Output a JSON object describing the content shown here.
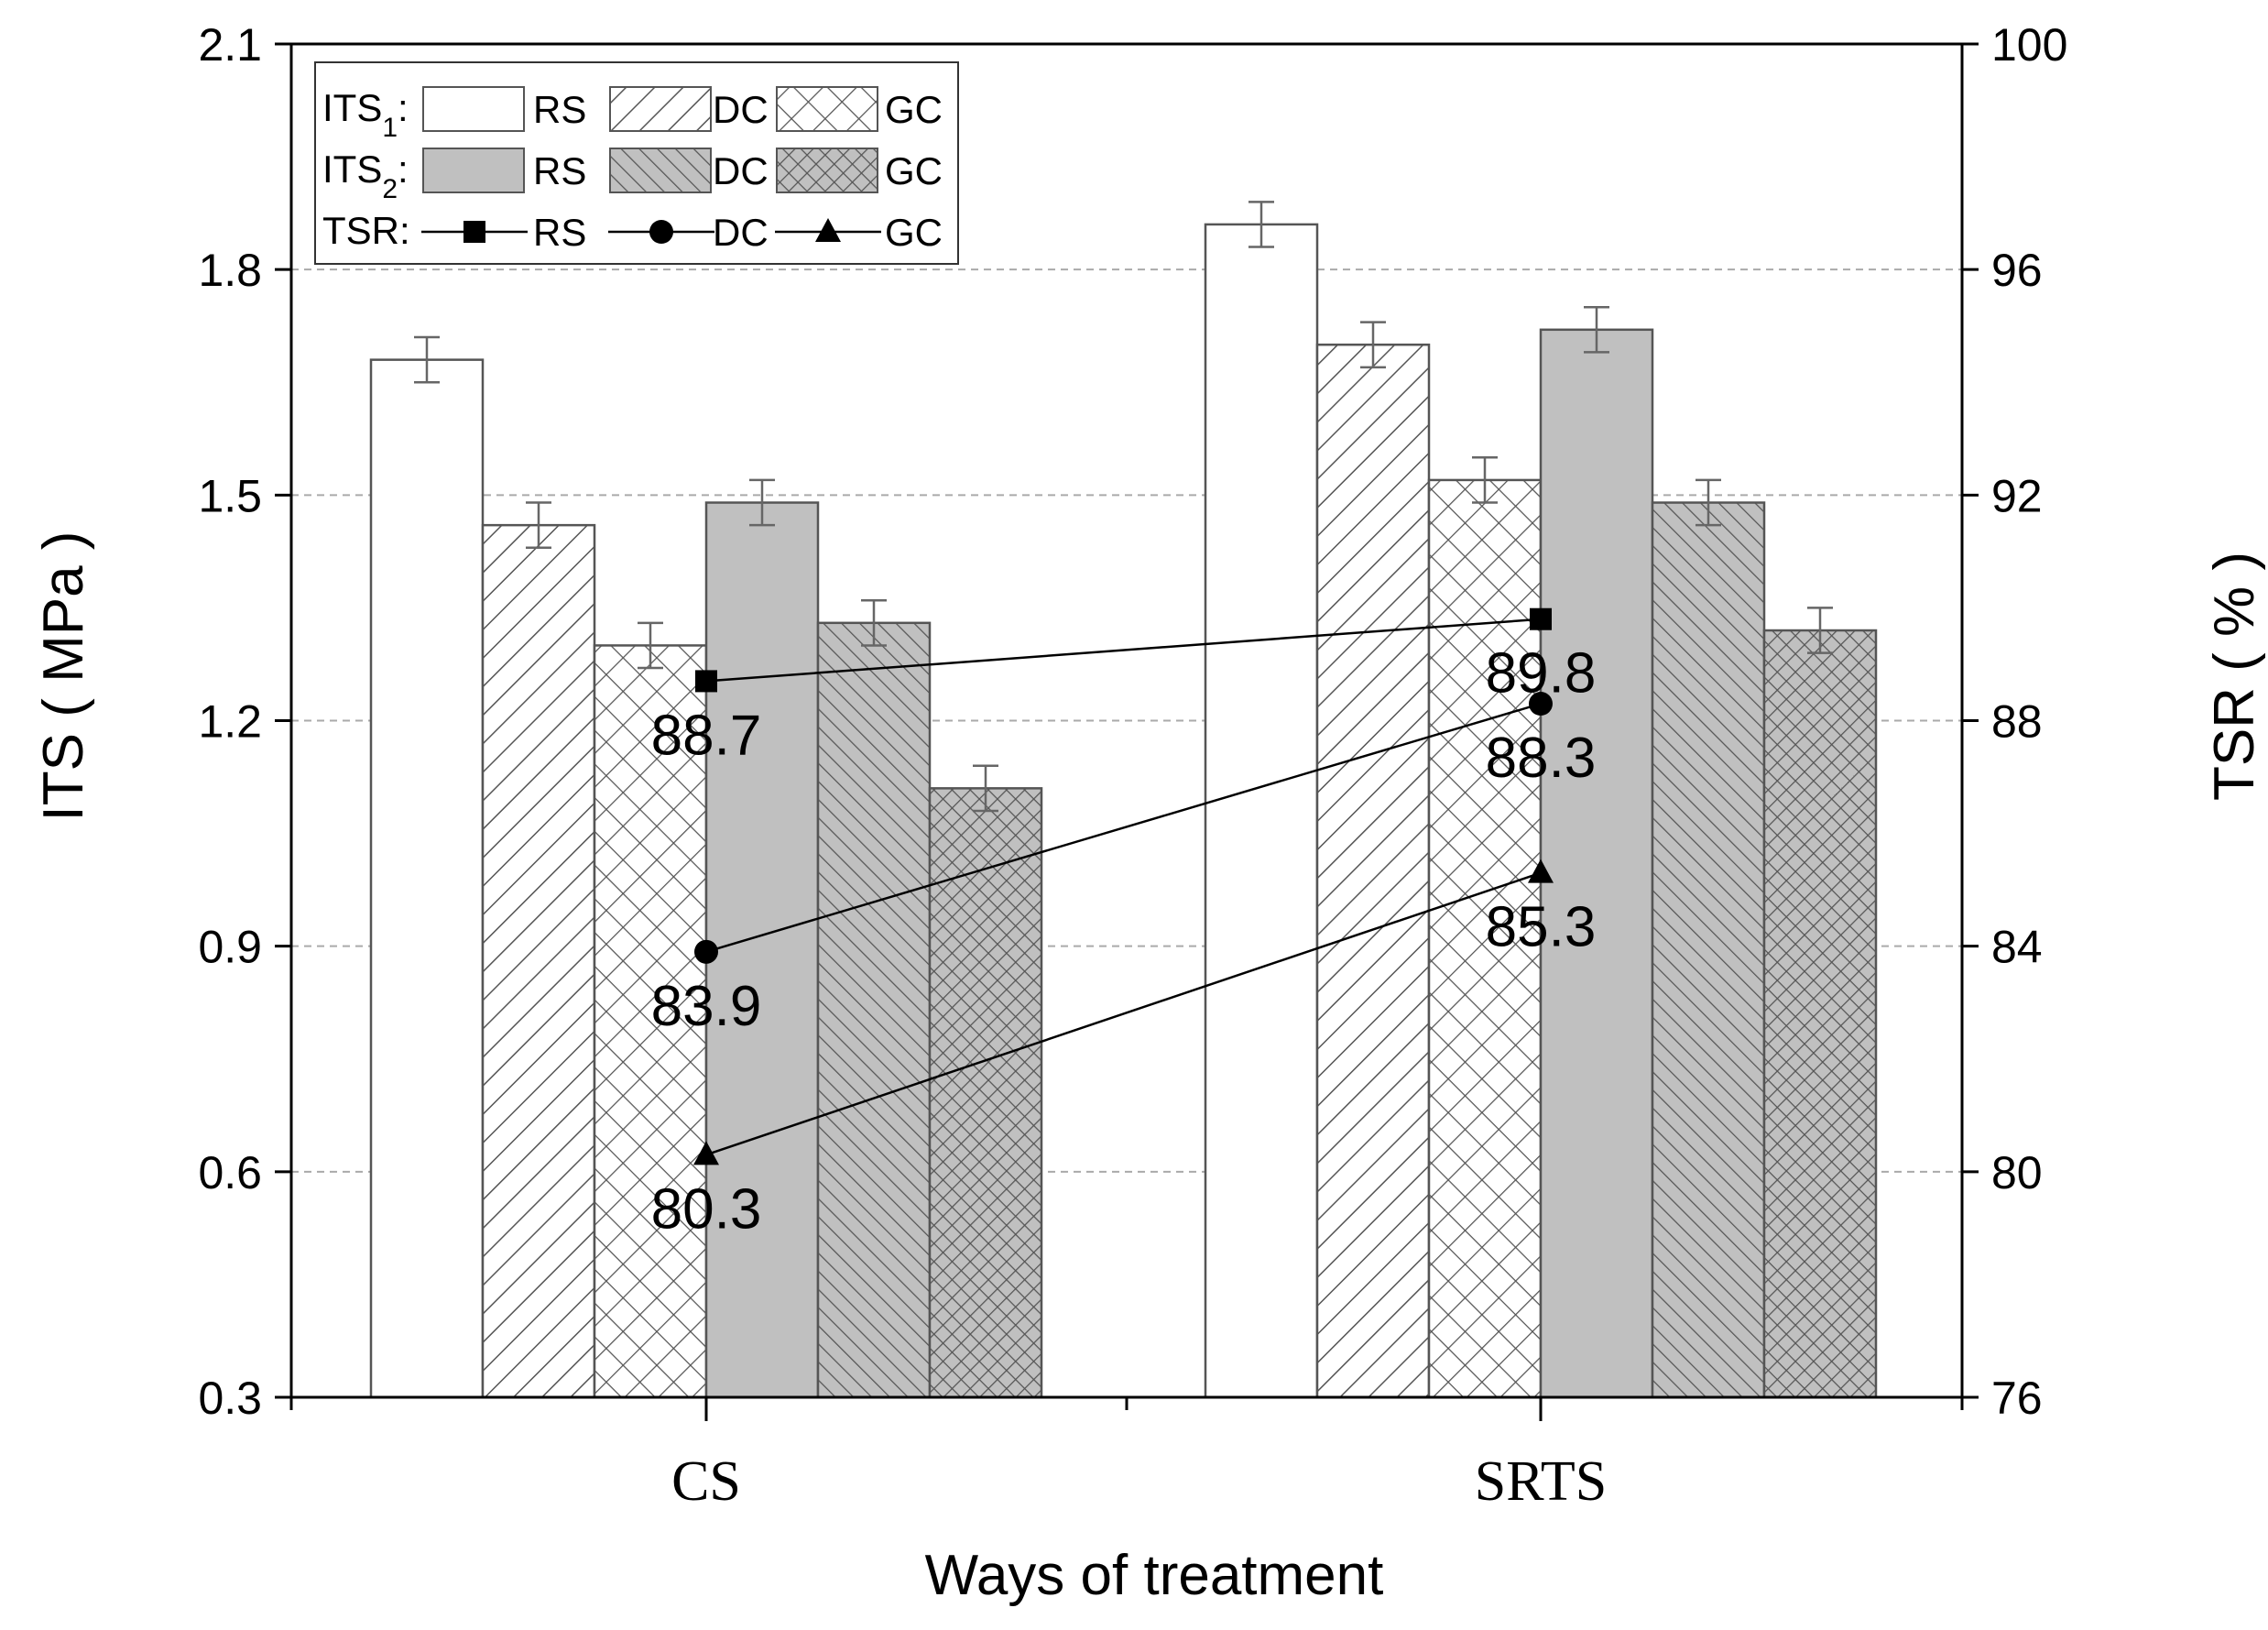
{
  "chart_data": {
    "type": "bar",
    "categories": [
      "CS",
      "SRTS"
    ],
    "xlabel": "Ways of treatment",
    "ylabel": "ITS ( MPa )",
    "ylabel_right": "TSR ( % )",
    "ylim": [
      0.3,
      2.1
    ],
    "yticks": [
      "0.3",
      "0.6",
      "0.9",
      "1.2",
      "1.5",
      "1.8",
      "2.1"
    ],
    "ylim_right": [
      76,
      100
    ],
    "yticks_right": [
      "76",
      "80",
      "84",
      "88",
      "92",
      "96",
      "100"
    ],
    "grid": true,
    "legend_position": "top-left",
    "series": [
      {
        "name": "ITS1 RS",
        "group": "ITS1",
        "variant": "RS",
        "values": [
          1.68,
          1.86
        ],
        "errors": [
          0.03,
          0.03
        ]
      },
      {
        "name": "ITS1 DC",
        "group": "ITS1",
        "variant": "DC",
        "values": [
          1.46,
          1.7
        ],
        "errors": [
          0.03,
          0.03
        ]
      },
      {
        "name": "ITS1 GC",
        "group": "ITS1",
        "variant": "GC",
        "values": [
          1.3,
          1.52
        ],
        "errors": [
          0.03,
          0.03
        ]
      },
      {
        "name": "ITS2 RS",
        "group": "ITS2",
        "variant": "RS",
        "values": [
          1.49,
          1.72
        ],
        "errors": [
          0.03,
          0.03
        ]
      },
      {
        "name": "ITS2 DC",
        "group": "ITS2",
        "variant": "DC",
        "values": [
          1.33,
          1.49
        ],
        "errors": [
          0.03,
          0.03
        ]
      },
      {
        "name": "ITS2 GC",
        "group": "ITS2",
        "variant": "GC",
        "values": [
          1.11,
          1.32
        ],
        "errors": [
          0.03,
          0.03
        ]
      }
    ],
    "lines": [
      {
        "name": "TSR RS",
        "marker": "square",
        "values": [
          88.7,
          89.8
        ],
        "labels": [
          "88.7",
          "89.8"
        ]
      },
      {
        "name": "TSR DC",
        "marker": "circle",
        "values": [
          83.9,
          88.3
        ],
        "labels": [
          "83.9",
          "88.3"
        ]
      },
      {
        "name": "TSR GC",
        "marker": "triangle",
        "values": [
          80.3,
          85.3
        ],
        "labels": [
          "80.3",
          "85.3"
        ]
      }
    ],
    "legend": {
      "rows": [
        {
          "prefix": "ITS",
          "sub": "1",
          "suffix": ":",
          "items": [
            "RS",
            "DC",
            "GC"
          ]
        },
        {
          "prefix": "ITS",
          "sub": "2",
          "suffix": ":",
          "items": [
            "RS",
            "DC",
            "GC"
          ]
        },
        {
          "prefix": "TSR:",
          "sub": "",
          "suffix": "",
          "items": [
            "RS",
            "DC",
            "GC"
          ]
        }
      ]
    },
    "colors": {
      "its1_fill": "#ffffff",
      "its2_fill": "#c0c0c0",
      "bar_edge": "#555555",
      "hatch": "#555555",
      "grid": "#aaaaaa",
      "line": "#000000"
    }
  }
}
